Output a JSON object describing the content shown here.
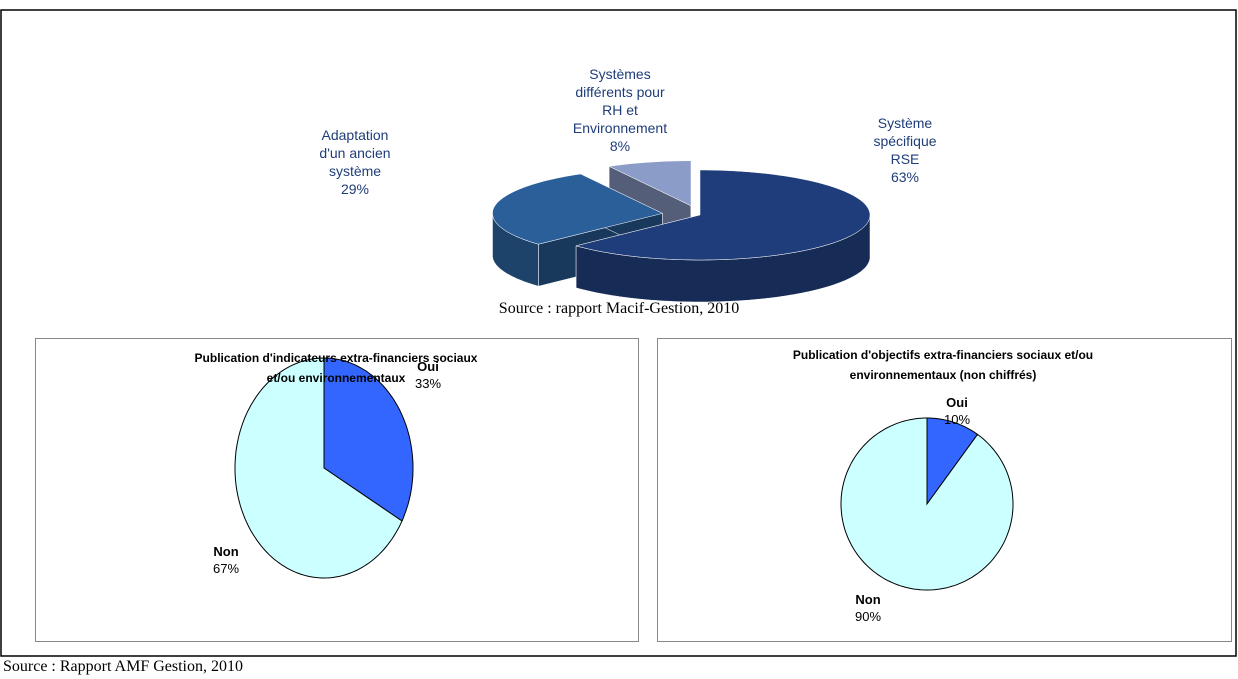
{
  "chart_data": [
    {
      "type": "pie",
      "three_d": true,
      "categories": [
        "Système\nspécifique\nRSE",
        "Adaptation\nd'un ancien\nsystème",
        "Systèmes\ndifférents pour\nRH et\nEnvironnement"
      ],
      "values": [
        63,
        29,
        8
      ],
      "value_labels": [
        "63%",
        "29%",
        "8%"
      ],
      "colors": [
        "#1f3d7a",
        "#2a5f99",
        "#8c9cc8"
      ],
      "caption": "Source : rapport Macif-Gestion, 2010"
    },
    {
      "type": "pie",
      "title": "Publication d'indicateurs extra-financiers sociaux\net/ou environnementaux",
      "categories": [
        "Oui",
        "Non"
      ],
      "values": [
        33,
        67
      ],
      "value_labels": [
        "33%",
        "67%"
      ],
      "colors": [
        "#3366ff",
        "#ccffff"
      ]
    },
    {
      "type": "pie",
      "title": "Publication d'objectifs extra-financiers sociaux et/ou\nenvironnementaux (non chiffrés)",
      "categories": [
        "Oui",
        "Non"
      ],
      "values": [
        10,
        90
      ],
      "value_labels": [
        "10%",
        "90%"
      ],
      "colors": [
        "#3366ff",
        "#ccffff"
      ]
    }
  ],
  "caption": "Source : Rapport AMF Gestion, 2010"
}
